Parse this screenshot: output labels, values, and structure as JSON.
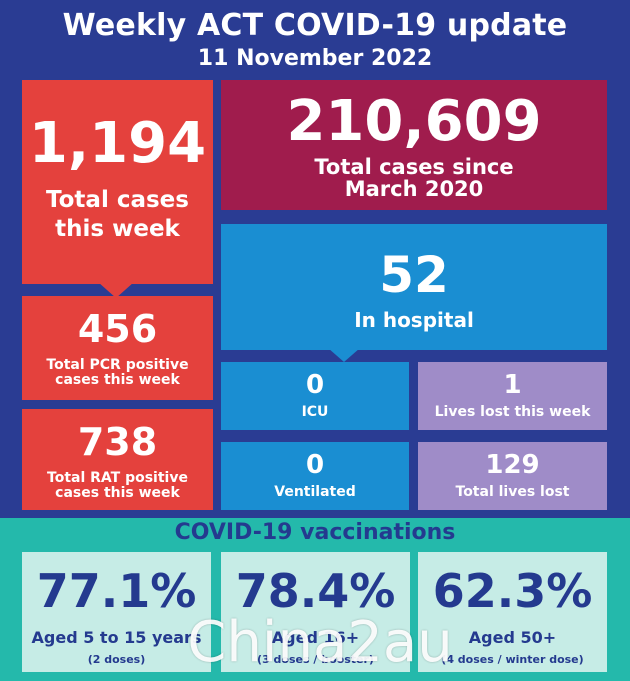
{
  "header": {
    "title": "Weekly ACT COVID-19 update",
    "date": "11 November 2022"
  },
  "cases": {
    "total_week_value": "1,194",
    "total_week_label_line1": "Total cases",
    "total_week_label_line2": "this week",
    "pcr_value": "456",
    "pcr_label_line1": "Total PCR positive",
    "pcr_label_line2": "cases this week",
    "rat_value": "738",
    "rat_label_line1": "Total RAT positive",
    "rat_label_line2": "cases this week",
    "since_value": "210,609",
    "since_label_line1": "Total cases since",
    "since_label_line2": "March 2020"
  },
  "hospital": {
    "in_hospital_value": "52",
    "in_hospital_label": "In hospital",
    "icu_value": "0",
    "icu_label": "ICU",
    "ventilated_value": "0",
    "ventilated_label": "Ventilated"
  },
  "deaths": {
    "week_value": "1",
    "week_label": "Lives lost this week",
    "total_value": "129",
    "total_label": "Total lives lost"
  },
  "vaccinations": {
    "title": "COVID-19 vaccinations",
    "cards": [
      {
        "value": "77.1%",
        "label": "Aged 5 to 15 years",
        "sub": "(2 doses)"
      },
      {
        "value": "78.4%",
        "label": "Aged 16+",
        "sub": "(3 doses / booster)"
      },
      {
        "value": "62.3%",
        "label": "Aged 50+",
        "sub": "(4 doses / winter dose)"
      }
    ]
  },
  "watermark": "Chinа2au",
  "colors": {
    "background": "#2a3c93",
    "red": "#e4413d",
    "maroon": "#a01c4d",
    "blue": "#1a8ed2",
    "purple": "#9f8cc8",
    "teal": "#24b9ab",
    "vax_card": "#c6ece6"
  }
}
